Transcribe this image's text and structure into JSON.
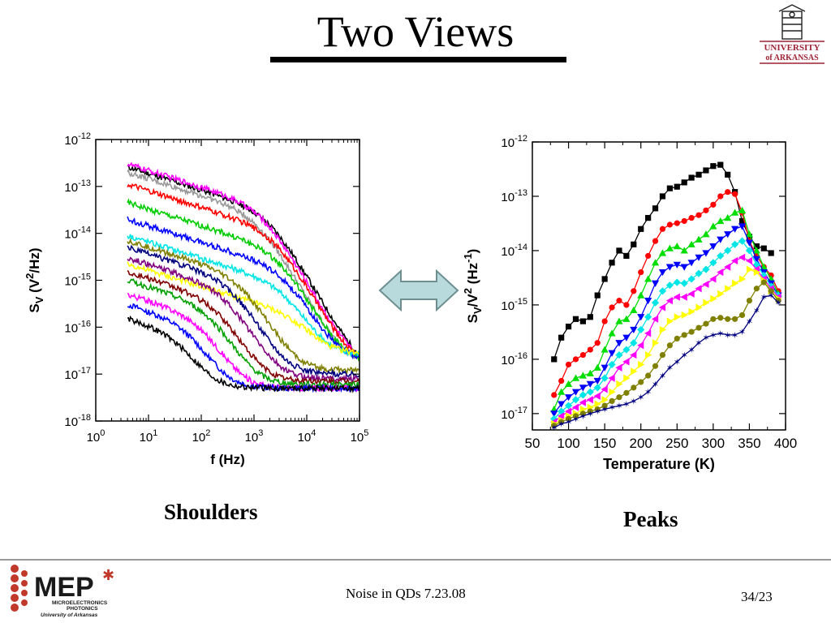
{
  "slide": {
    "title": "Two Views",
    "footer_center": "Noise in QDs 7.23.08",
    "footer_right": "34/23",
    "university_logo_lines": [
      "UNIVERSITY",
      "of ARKANSAS"
    ],
    "institute_logo_text": [
      "MEP",
      "MICROELECTRONICS",
      "PHOTONICS",
      "University of Arkansas"
    ],
    "arrow_icon": "double-arrow-icon",
    "arrow_color": "#b9dadd"
  },
  "captions": {
    "left": "Shoulders",
    "right": "Peaks"
  },
  "chart_data": [
    {
      "type": "line",
      "xscale": "log",
      "yscale": "log",
      "xlabel": "f (Hz)",
      "ylabel": "S_V (V^2/Hz)",
      "xlim": [
        1,
        100000
      ],
      "ylim": [
        1e-18,
        1e-12
      ],
      "xticks": [
        "10^0",
        "10^1",
        "10^2",
        "10^3",
        "10^4",
        "10^5"
      ],
      "yticks": [
        "10^-18",
        "10^-17",
        "10^-16",
        "10^-15",
        "10^-14",
        "10^-13",
        "10^-12"
      ],
      "f_min": 4,
      "f_max": 100000,
      "series": [
        {
          "color": "#000000",
          "start": 2.6e-13,
          "corner": 2000,
          "floor": 1.2e-17
        },
        {
          "color": "#ff00ff",
          "start": 3e-13,
          "corner": 1500,
          "floor": 1.4e-17
        },
        {
          "color": "#999999",
          "start": 2e-13,
          "corner": 1200,
          "floor": 1.6e-17
        },
        {
          "color": "#ff0000",
          "start": 1.1e-13,
          "corner": 2500,
          "floor": 1.5e-17
        },
        {
          "color": "#00cc00",
          "start": 4.5e-14,
          "corner": 3000,
          "floor": 1.8e-17
        },
        {
          "color": "#0000ff",
          "start": 2e-14,
          "corner": 4000,
          "floor": 2e-17
        },
        {
          "color": "#00e5e5",
          "start": 9e-15,
          "corner": 4000,
          "floor": 2.5e-17
        },
        {
          "color": "#ffff00",
          "start": 2.2e-15,
          "corner": 8000,
          "floor": 2.8e-17
        },
        {
          "color": "#808000",
          "start": 7e-15,
          "corner": 600,
          "floor": 1.2e-17
        },
        {
          "color": "#000080",
          "start": 5e-15,
          "corner": 400,
          "floor": 1e-17
        },
        {
          "color": "#800080",
          "start": 3e-15,
          "corner": 300,
          "floor": 8e-18
        },
        {
          "color": "#800000",
          "start": 1.5e-15,
          "corner": 200,
          "floor": 7e-18
        },
        {
          "color": "#00a000",
          "start": 1e-15,
          "corner": 150,
          "floor": 6e-18
        },
        {
          "color": "#ff00ff",
          "start": 5e-16,
          "corner": 100,
          "floor": 5e-18
        },
        {
          "color": "#0000ff",
          "start": 3e-16,
          "corner": 60,
          "floor": 5e-18
        },
        {
          "color": "#000000",
          "start": 1.5e-16,
          "corner": 40,
          "floor": 5e-18
        }
      ]
    },
    {
      "type": "line",
      "yscale": "log",
      "xlabel": "Temperature (K)",
      "ylabel": "S_V/V^2 (Hz^-1)",
      "xlim": [
        50,
        400
      ],
      "ylim": [
        5e-18,
        1e-12
      ],
      "xticks": [
        "50",
        "100",
        "150",
        "200",
        "250",
        "300",
        "350",
        "400"
      ],
      "yticks": [
        "10^-17",
        "10^-16",
        "10^-15",
        "10^-14",
        "10^-13",
        "10^-12"
      ],
      "x": [
        80,
        90,
        100,
        110,
        120,
        130,
        140,
        150,
        160,
        170,
        180,
        190,
        200,
        210,
        220,
        230,
        240,
        250,
        260,
        270,
        280,
        290,
        300,
        310,
        320,
        330,
        340,
        350,
        360,
        370,
        380,
        390
      ],
      "series": [
        {
          "color": "#000000",
          "marker": "square",
          "values": [
            1e-16,
            2.5e-16,
            4e-16,
            5.5e-16,
            5e-16,
            6e-16,
            1.5e-15,
            3e-15,
            6e-15,
            1e-14,
            8e-15,
            1.3e-14,
            2.5e-14,
            4e-14,
            6e-14,
            1e-13,
            1.4e-13,
            1.5e-13,
            1.8e-13,
            2.2e-13,
            2.5e-13,
            3e-13,
            3.6e-13,
            3.8e-13,
            2.5e-13,
            1.2e-13,
            3.5e-14,
            1.8e-14,
            1.2e-14,
            1.1e-14,
            9e-15,
            null
          ]
        },
        {
          "color": "#ff0000",
          "marker": "circle",
          "values": [
            2.2e-17,
            4e-17,
            8e-17,
            1e-16,
            1.2e-16,
            1.5e-16,
            2e-16,
            5e-16,
            9e-16,
            1.2e-15,
            1e-15,
            1.8e-15,
            4e-15,
            8e-15,
            1.5e-14,
            2.5e-14,
            3e-14,
            3.2e-14,
            3.5e-14,
            4e-14,
            4.5e-14,
            5.5e-14,
            7e-14,
            1e-13,
            1.2e-13,
            1.1e-13,
            5e-14,
            1.5e-14,
            8e-15,
            5e-15,
            3.5e-15,
            1.8e-15
          ]
        },
        {
          "color": "#00dd00",
          "marker": "triangle-up",
          "values": [
            1.2e-17,
            2.5e-17,
            3.5e-17,
            4.5e-17,
            5e-17,
            5.5e-17,
            7e-17,
            1.5e-16,
            3e-16,
            5e-16,
            5.5e-16,
            8e-16,
            1.5e-15,
            3e-15,
            6e-15,
            9e-15,
            1.1e-14,
            1.2e-14,
            1e-14,
            1.3e-14,
            1.6e-14,
            2e-14,
            2.8e-14,
            3.5e-14,
            4e-14,
            5e-14,
            5.5e-14,
            2e-14,
            1e-14,
            5e-15,
            3e-15,
            1.6e-15
          ]
        },
        {
          "color": "#0000ff",
          "marker": "triangle-down",
          "values": [
            1e-17,
            1.5e-17,
            2e-17,
            2.5e-17,
            3e-17,
            3.5e-17,
            4e-17,
            7e-17,
            1.3e-16,
            2e-16,
            2.5e-16,
            3.5e-16,
            6e-16,
            1.2e-15,
            2.5e-15,
            4e-15,
            5e-15,
            5.5e-15,
            5e-15,
            6e-15,
            7.5e-15,
            9e-15,
            1.2e-14,
            1.6e-14,
            2e-14,
            2.5e-14,
            2.8e-14,
            1.4e-14,
            7e-15,
            4e-15,
            2.5e-15,
            1.5e-15
          ]
        },
        {
          "color": "#00e5e5",
          "marker": "diamond",
          "values": [
            8e-18,
            1.1e-17,
            1.4e-17,
            1.8e-17,
            2.2e-17,
            2.5e-17,
            3e-17,
            4.5e-17,
            8e-17,
            1.2e-16,
            1.5e-16,
            2e-16,
            3.5e-16,
            6e-16,
            1.1e-15,
            1.8e-15,
            2.3e-15,
            2.6e-15,
            2.5e-15,
            3e-15,
            3.8e-15,
            4.5e-15,
            6e-15,
            8e-15,
            1e-14,
            1.3e-14,
            1.5e-14,
            1e-14,
            5.5e-15,
            3.5e-15,
            2.2e-15,
            1.5e-15
          ]
        },
        {
          "color": "#ff00ff",
          "marker": "triangle-left",
          "values": [
            7e-18,
            9e-18,
            1.1e-17,
            1.3e-17,
            1.6e-17,
            1.8e-17,
            2.1e-17,
            2.8e-17,
            4.5e-17,
            7e-17,
            9e-17,
            1.2e-16,
            1.8e-16,
            3e-16,
            5.5e-16,
            9e-16,
            1.2e-15,
            1.4e-15,
            1.4e-15,
            1.6e-15,
            2e-15,
            2.4e-15,
            3e-15,
            4e-15,
            5e-15,
            6.5e-15,
            7.5e-15,
            6.5e-15,
            4.5e-15,
            3e-15,
            2e-15,
            1.4e-15
          ]
        },
        {
          "color": "#ffff00",
          "marker": "triangle-right",
          "values": [
            6.5e-18,
            7.5e-18,
            9e-18,
            1e-17,
            1.2e-17,
            1.3e-17,
            1.5e-17,
            1.8e-17,
            2.5e-17,
            3.5e-17,
            4.5e-17,
            6e-17,
            8e-17,
            1.2e-16,
            2e-16,
            3.5e-16,
            5e-16,
            6e-16,
            6.5e-16,
            7.5e-16,
            9e-16,
            1.1e-15,
            1.3e-15,
            1.6e-15,
            2e-15,
            2.5e-15,
            3e-15,
            4.5e-15,
            4e-15,
            2.8e-15,
            1.8e-15,
            1.3e-15
          ]
        },
        {
          "color": "#808000",
          "marker": "circle",
          "values": [
            6e-18,
            7e-18,
            8e-18,
            9e-18,
            1e-17,
            1.1e-17,
            1.2e-17,
            1.4e-17,
            1.7e-17,
            2e-17,
            2.4e-17,
            3e-17,
            3.8e-17,
            5e-17,
            7.5e-17,
            1.2e-16,
            1.8e-16,
            2.4e-16,
            2.8e-16,
            3.2e-16,
            3.8e-16,
            4.5e-16,
            5.5e-16,
            5.8e-16,
            5.5e-16,
            5.5e-16,
            6.5e-16,
            1.2e-15,
            2e-15,
            2.6e-15,
            1.8e-15,
            1.2e-15
          ]
        },
        {
          "color": "#000080",
          "marker": "star",
          "values": [
            5.5e-18,
            6.5e-18,
            7e-18,
            8e-18,
            9e-18,
            1e-17,
            1.1e-17,
            1.2e-17,
            1.3e-17,
            1.4e-17,
            1.5e-17,
            1.7e-17,
            2e-17,
            2.5e-17,
            3.5e-17,
            5e-17,
            7e-17,
            9e-17,
            1.2e-16,
            1.5e-16,
            2e-16,
            2.5e-16,
            2.8e-16,
            3e-16,
            2.8e-16,
            2.8e-16,
            3.2e-16,
            5e-16,
            8e-16,
            1.4e-15,
            1.5e-15,
            1.1e-15
          ]
        }
      ]
    }
  ]
}
